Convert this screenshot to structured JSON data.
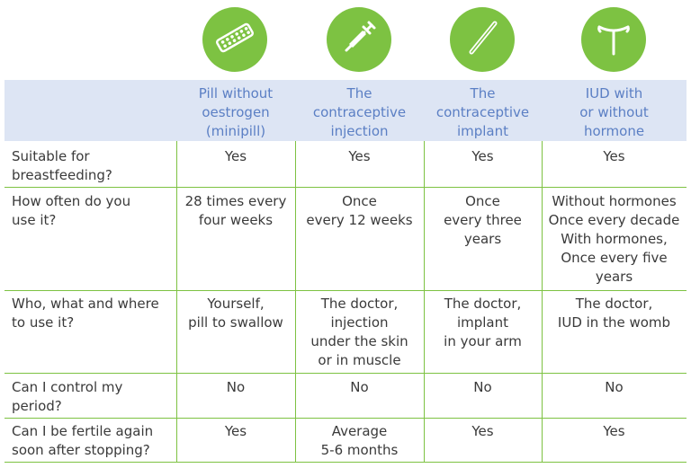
{
  "icons": [
    {
      "name": "pill-blister-icon"
    },
    {
      "name": "syringe-icon"
    },
    {
      "name": "implant-rod-icon"
    },
    {
      "name": "iud-icon"
    }
  ],
  "colors": {
    "accent": "#7dc242",
    "header_bg": "#dde5f4",
    "header_text": "#5b7fc4",
    "body_text": "#3a3a3a"
  },
  "columns": [
    "Pill without\noestrogen\n(minipill)",
    "The\ncontraceptive\ninjection",
    "The\ncontraceptive\nimplant",
    "IUD with\nor without\nhormone"
  ],
  "rows": [
    {
      "question": "Suitable for\nbreastfeeding?",
      "answers": [
        "Yes",
        "Yes",
        "Yes",
        "Yes"
      ]
    },
    {
      "question": "How often do you\nuse it?",
      "answers": [
        "28 times every\nfour weeks",
        "Once\nevery 12 weeks",
        "Once\nevery three\nyears",
        "Without hormones\nOnce every decade\nWith hormones,\nOnce every five\nyears"
      ]
    },
    {
      "question": "Who, what and where\nto use it?",
      "answers": [
        "Yourself,\npill to swallow",
        "The doctor,\ninjection\nunder the skin\nor in muscle",
        "The doctor,\nimplant\nin your arm",
        "The doctor,\nIUD in the womb"
      ]
    },
    {
      "question": "Can I control my\nperiod?",
      "answers": [
        "No",
        "No",
        "No",
        "No"
      ]
    },
    {
      "question": "Can I be fertile again\nsoon after stopping?",
      "answers": [
        "Yes",
        "Average\n5-6 months",
        "Yes",
        "Yes"
      ]
    }
  ]
}
